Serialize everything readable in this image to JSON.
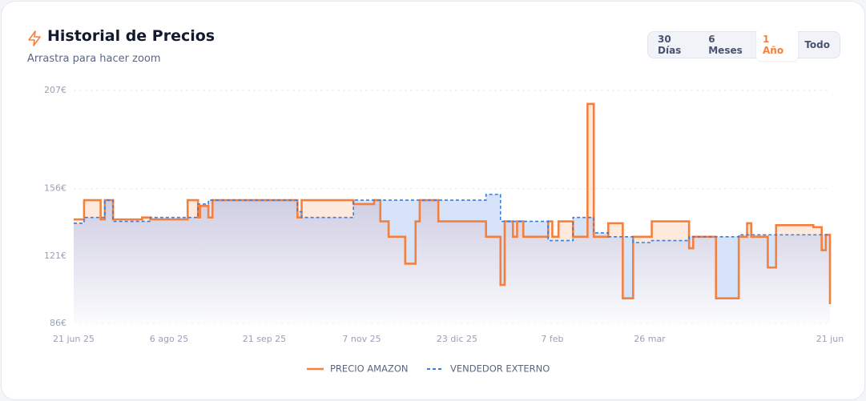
{
  "header": {
    "title": "Historial de Precios",
    "subtitle": "Arrastra para hacer zoom"
  },
  "controls": {
    "ranges": [
      "30 Días",
      "6 Meses",
      "1 Año",
      "Todo"
    ],
    "active": 2
  },
  "chart_data": {
    "type": "step-line",
    "x": [
      "2025-06-21",
      "2025-06-26",
      "2025-07-04",
      "2025-07-06",
      "2025-07-10",
      "2025-07-24",
      "2025-07-28",
      "2025-08-15",
      "2025-08-20",
      "2025-08-21",
      "2025-08-25",
      "2025-08-27",
      "2025-10-07",
      "2025-10-09",
      "2025-11-03",
      "2025-11-13",
      "2025-11-16",
      "2025-11-20",
      "2025-11-28",
      "2025-12-03",
      "2025-12-05",
      "2025-12-14",
      "2026-01-06",
      "2026-01-13",
      "2026-01-15",
      "2026-01-19",
      "2026-01-21",
      "2026-01-24",
      "2026-02-05",
      "2026-02-07",
      "2026-02-10",
      "2026-02-17",
      "2026-02-24",
      "2026-02-27",
      "2026-03-06",
      "2026-03-13",
      "2026-03-18",
      "2026-03-27",
      "2026-04-14",
      "2026-04-16",
      "2026-04-27",
      "2026-05-08",
      "2026-05-12",
      "2026-05-14",
      "2026-05-22",
      "2026-05-26",
      "2026-06-13",
      "2026-06-17",
      "2026-06-19",
      "2026-06-21"
    ],
    "series": [
      {
        "name": "PRECIO AMAZON",
        "color": "#f5803e",
        "dash": false,
        "values": [
          140,
          150,
          140,
          150,
          140,
          141,
          140,
          150,
          141,
          147,
          141,
          150,
          141,
          150,
          148,
          150,
          139,
          131,
          117,
          139,
          150,
          139,
          131,
          106,
          139,
          131,
          139,
          131,
          139,
          131,
          139,
          131,
          200,
          131,
          138,
          99,
          131,
          139,
          125,
          131,
          99,
          131,
          138,
          131,
          115,
          137,
          136,
          124,
          132,
          96
        ]
      },
      {
        "name": "VENDEDOR EXTERNO",
        "color": "#3b7ddd",
        "dash": true,
        "values": [
          138,
          141,
          141,
          150,
          139,
          139,
          141,
          141,
          148,
          148,
          150,
          150,
          144,
          141,
          150,
          150,
          150,
          150,
          150,
          150,
          150,
          150,
          153,
          139,
          139,
          139,
          139,
          139,
          129,
          129,
          129,
          141,
          141,
          133,
          131,
          131,
          128,
          129,
          131,
          131,
          131,
          132,
          132,
          132,
          132,
          132,
          132,
          132,
          132,
          132
        ]
      }
    ],
    "xlim": [
      "2025-06-21",
      "2026-06-21"
    ],
    "xticks": [
      {
        "value": "2025-06-21",
        "label": "21 jun 25"
      },
      {
        "value": "2025-08-06",
        "label": "6 ago 25"
      },
      {
        "value": "2025-09-21",
        "label": "21 sep 25"
      },
      {
        "value": "2025-11-07",
        "label": "7 nov 25"
      },
      {
        "value": "2025-12-23",
        "label": "23 dic 25"
      },
      {
        "value": "2026-02-07",
        "label": "7 feb"
      },
      {
        "value": "2026-03-26",
        "label": "26 mar"
      },
      {
        "value": "2026-06-21",
        "label": "21 jun"
      }
    ],
    "ylim": [
      86,
      207
    ],
    "yticks": [
      {
        "value": 86,
        "label": "86€"
      },
      {
        "value": 121,
        "label": "121€"
      },
      {
        "value": 156,
        "label": "156€"
      },
      {
        "value": 207,
        "label": "207€"
      }
    ],
    "grid": true
  }
}
